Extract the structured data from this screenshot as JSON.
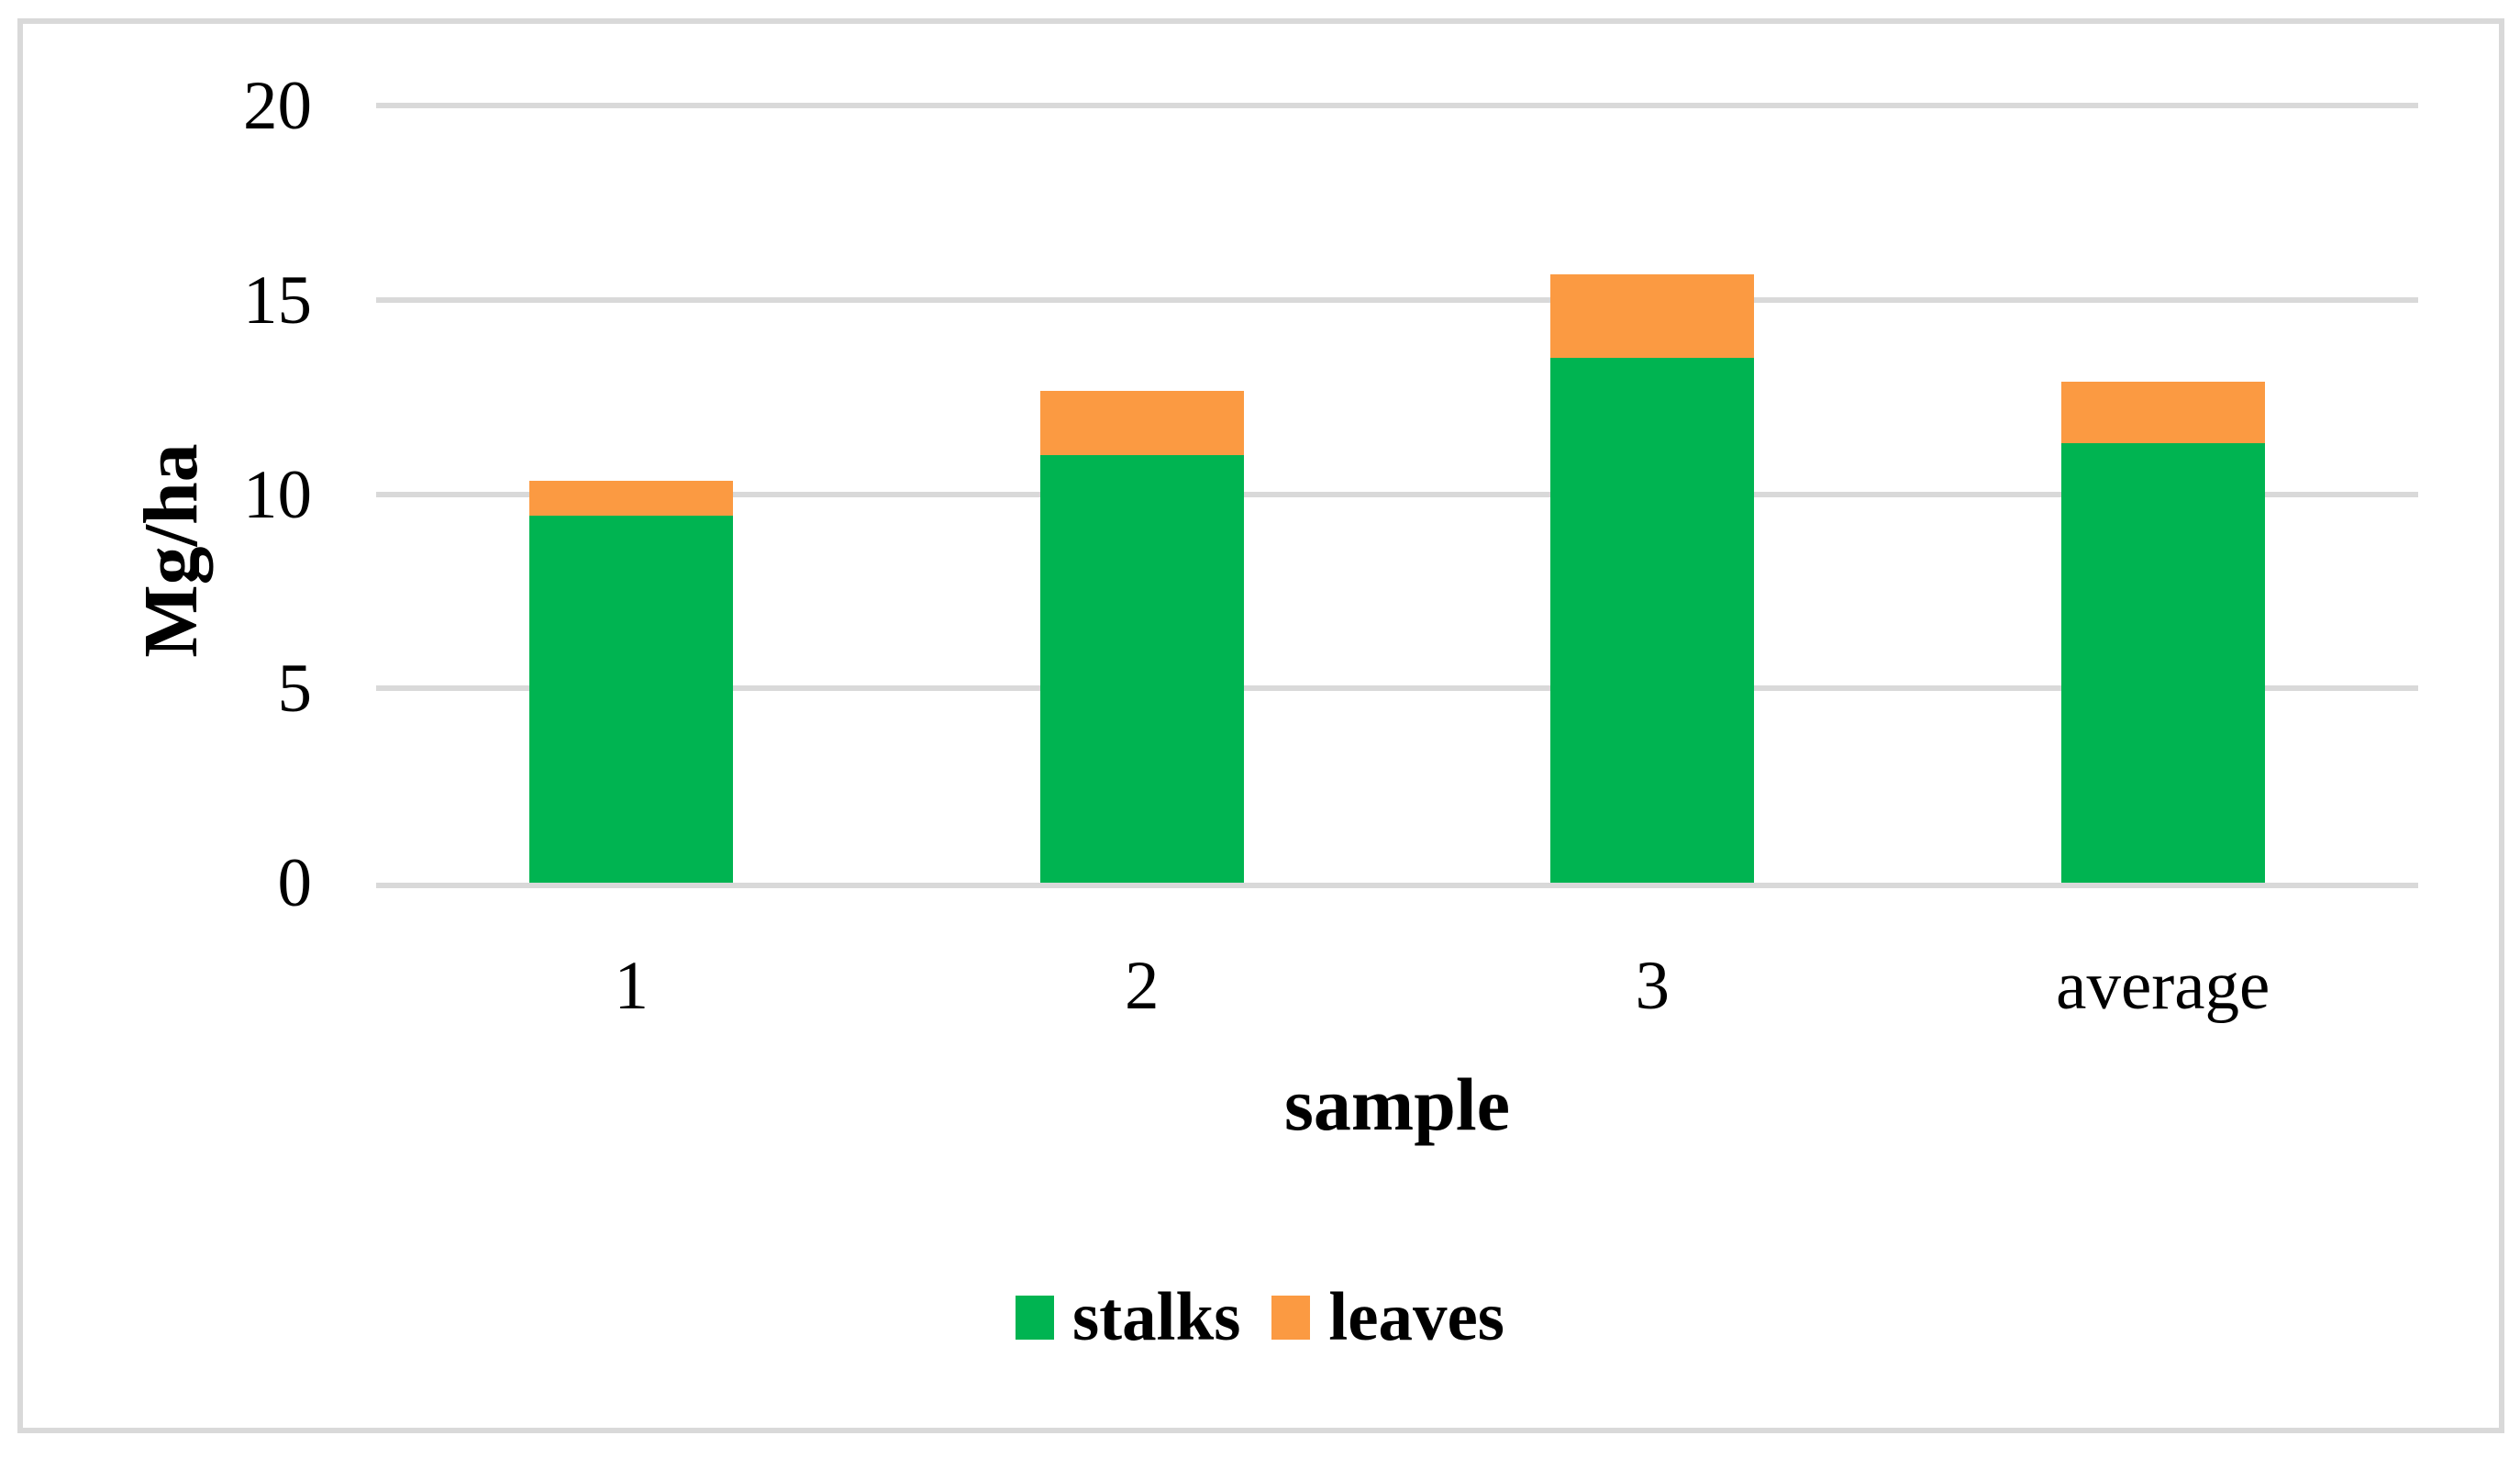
{
  "figure": {
    "background": "#FFFFFF",
    "frame_color": "#D9D9D9"
  },
  "chart_data": {
    "type": "bar",
    "stacked": true,
    "title": "",
    "categories": [
      "1",
      "2",
      "3",
      "average"
    ],
    "series": [
      {
        "name": "stalks",
        "color": "#00B451",
        "values": [
          9.45,
          11.0,
          13.5,
          11.3
        ]
      },
      {
        "name": "leaves",
        "color": "#FB9A42",
        "values": [
          0.9,
          1.65,
          2.15,
          1.6
        ]
      }
    ],
    "stack_totals": [
      10.35,
      12.65,
      15.65,
      12.9
    ],
    "xlabel": "sample",
    "ylabel": "Mg/ha",
    "ylim": [
      0,
      20
    ],
    "yticks": [
      0,
      5,
      10,
      15,
      20
    ],
    "grid": true,
    "gridline_color": "#D9D9D9",
    "legend_position": "bottom",
    "legend_labels": [
      "stalks",
      "leaves"
    ]
  }
}
